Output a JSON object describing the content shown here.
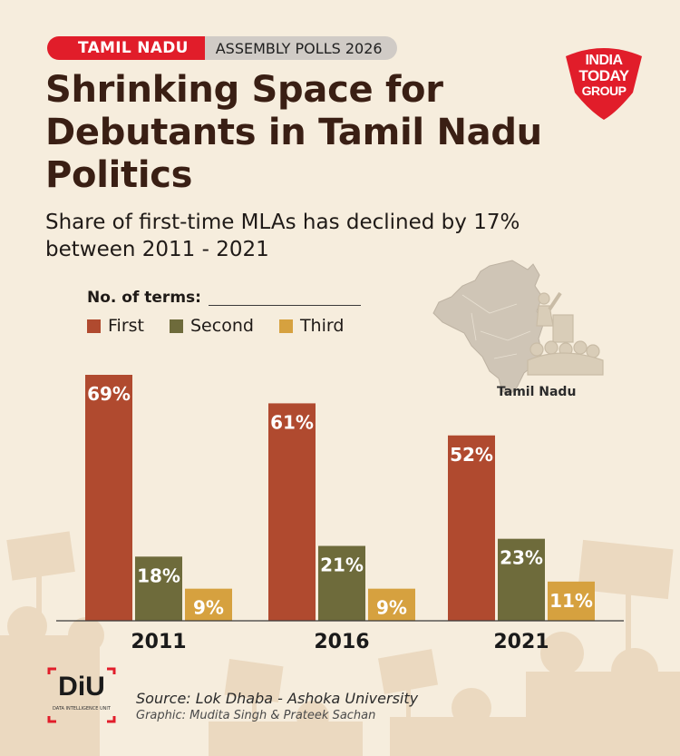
{
  "header": {
    "tag_primary": "TAMIL NADU",
    "tag_secondary": "ASSEMBLY POLLS 2026",
    "title": "Shrinking Space for Debutants in Tamil Nadu Politics",
    "subtitle": "Share of first-time MLAs has declined by 17% between 2011 - 2021"
  },
  "brand": {
    "logo_line1": "INDIA",
    "logo_line2": "TODAY",
    "logo_line3": "GROUP",
    "logo_color": "#e11d2a"
  },
  "map_label": "Tamil Nadu",
  "colors": {
    "first": "#b04a2f",
    "second": "#6e6b3b",
    "third": "#d6a13f",
    "background": "#f6eddd"
  },
  "chart_data": {
    "type": "bar",
    "title": "Shrinking Space for Debutants in Tamil Nadu Politics",
    "subtitle": "Share of first-time MLAs has declined by 17% between 2011 - 2021",
    "legend_title": "No. of terms:",
    "legend_position": "top-left",
    "categories": [
      "2011",
      "2016",
      "2021"
    ],
    "series": [
      {
        "name": "First",
        "values": [
          69,
          61,
          52
        ],
        "labels": [
          "69%",
          "61%",
          "52%"
        ],
        "color": "#b04a2f"
      },
      {
        "name": "Second",
        "values": [
          18,
          21,
          23
        ],
        "labels": [
          "18%",
          "21%",
          "23%"
        ],
        "color": "#6e6b3b"
      },
      {
        "name": "Third",
        "values": [
          9,
          9,
          11
        ],
        "labels": [
          "9%",
          "9%",
          "11%"
        ],
        "color": "#d6a13f"
      }
    ],
    "ylim": [
      0,
      69
    ],
    "grid": false
  },
  "footer": {
    "diu_logo": "DiU",
    "diu_caption": "DATA INTELLIGENCE UNIT",
    "source": "Source: Lok Dhaba - Ashoka University",
    "credit": "Graphic: Mudita Singh & Prateek Sachan"
  }
}
